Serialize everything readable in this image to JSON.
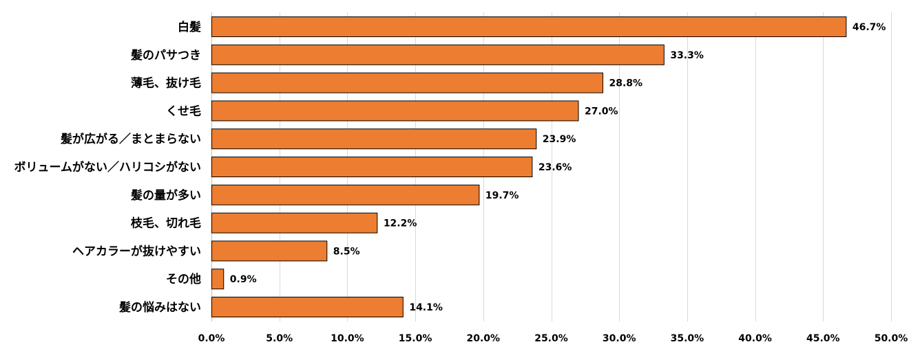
{
  "chart_data": {
    "type": "bar",
    "orientation": "horizontal",
    "title": "",
    "xlabel": "",
    "ylabel": "",
    "categories": [
      "白髪",
      "髪のパサつき",
      "薄毛、抜け毛",
      "くせ毛",
      "髪が広がる／まとまらない",
      "ボリュームがない／ハリコシがない",
      "髪の量が多い",
      "枝毛、切れ毛",
      "ヘアカラーが抜けやすい",
      "その他",
      "髪の悩みはない"
    ],
    "values": [
      46.7,
      33.3,
      28.8,
      27.0,
      23.9,
      23.6,
      19.7,
      12.2,
      8.5,
      0.9,
      14.1
    ],
    "data_labels": [
      "46.7%",
      "33.3%",
      "28.8%",
      "27.0%",
      "23.9%",
      "23.6%",
      "19.7%",
      "12.2%",
      "8.5%",
      "0.9%",
      "14.1%"
    ],
    "xlim": [
      0,
      50
    ],
    "x_ticks": [
      0,
      5,
      10,
      15,
      20,
      25,
      30,
      35,
      40,
      45,
      50
    ],
    "x_tick_labels": [
      "0.0%",
      "5.0%",
      "10.0%",
      "15.0%",
      "20.0%",
      "25.0%",
      "30.0%",
      "35.0%",
      "40.0%",
      "45.0%",
      "50.0%"
    ],
    "grid": "vertical",
    "legend": "none",
    "bar_color": "#ED7D31",
    "bar_border_color": "#000000"
  }
}
